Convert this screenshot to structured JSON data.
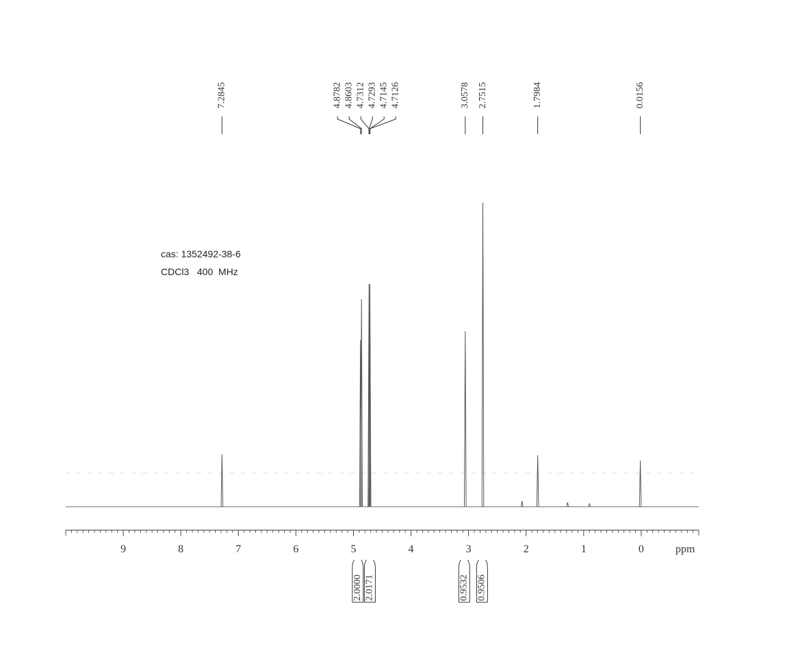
{
  "chart_data": {
    "type": "nmr",
    "annotations": [
      "cas: 1352492-38-6",
      "CDCl3   400  MHz"
    ],
    "xlabel": "ppm",
    "xlim": [
      10,
      -1
    ],
    "xticks": [
      9,
      8,
      7,
      6,
      5,
      4,
      3,
      2,
      1,
      0
    ],
    "xminor": 0.1,
    "ylim": [
      0,
      500
    ],
    "color": "#555555",
    "peaks": {
      "x": [
        7.2845,
        4.8782,
        4.8603,
        4.7312,
        4.7293,
        4.7145,
        4.7126,
        3.0578,
        2.7515,
        2.07,
        1.7984,
        1.28,
        0.9,
        0.0156
      ],
      "values": [
        76,
        243,
        303,
        244,
        325,
        325,
        244,
        256,
        444,
        8,
        75,
        6,
        4,
        67
      ]
    },
    "peak_labels": [
      7.2845,
      4.8782,
      4.8603,
      4.7312,
      4.7293,
      4.7145,
      4.7126,
      3.0578,
      2.7515,
      1.7984,
      0.0156
    ],
    "integrals": [
      {
        "value": 2,
        "label": "2.0000"
      },
      2.0171,
      0.9532,
      0.9506
    ],
    "integral_ranges": [
      [
        5.02,
        4.83
      ],
      [
        4.81,
        4.62
      ],
      [
        3.17,
        2.98
      ],
      [
        2.86,
        2.67
      ]
    ]
  }
}
